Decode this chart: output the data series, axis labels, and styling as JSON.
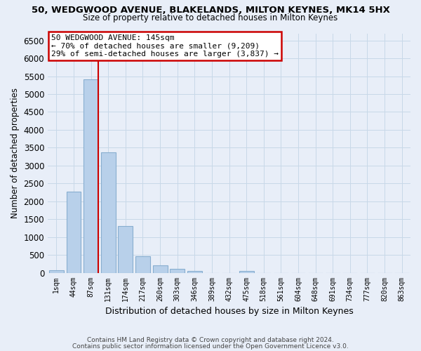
{
  "title_line1": "50, WEDGWOOD AVENUE, BLAKELANDS, MILTON KEYNES, MK14 5HX",
  "title_line2": "Size of property relative to detached houses in Milton Keynes",
  "xlabel": "Distribution of detached houses by size in Milton Keynes",
  "ylabel": "Number of detached properties",
  "footnote_line1": "Contains HM Land Registry data © Crown copyright and database right 2024.",
  "footnote_line2": "Contains public sector information licensed under the Open Government Licence v3.0.",
  "categories": [
    "1sqm",
    "44sqm",
    "87sqm",
    "131sqm",
    "174sqm",
    "217sqm",
    "260sqm",
    "303sqm",
    "346sqm",
    "389sqm",
    "432sqm",
    "475sqm",
    "518sqm",
    "561sqm",
    "604sqm",
    "648sqm",
    "691sqm",
    "734sqm",
    "777sqm",
    "820sqm",
    "863sqm"
  ],
  "bar_values": [
    70,
    2270,
    5420,
    3380,
    1310,
    470,
    215,
    100,
    60,
    0,
    0,
    60,
    0,
    0,
    0,
    0,
    0,
    0,
    0,
    0,
    0
  ],
  "bar_color": "#b8d0ea",
  "bar_edgecolor": "#88aed0",
  "grid_color": "#c8d8e8",
  "bg_color": "#e8eef8",
  "vline_color": "#cc0000",
  "annotation_title": "50 WEDGWOOD AVENUE: 145sqm",
  "annotation_line1": "← 70% of detached houses are smaller (9,209)",
  "annotation_line2": "29% of semi-detached houses are larger (3,837) →",
  "annotation_box_facecolor": "white",
  "annotation_box_edgecolor": "#cc0000",
  "ylim": [
    0,
    6700
  ],
  "yticks": [
    0,
    500,
    1000,
    1500,
    2000,
    2500,
    3000,
    3500,
    4000,
    4500,
    5000,
    5500,
    6000,
    6500
  ],
  "vline_bar_index": 2
}
